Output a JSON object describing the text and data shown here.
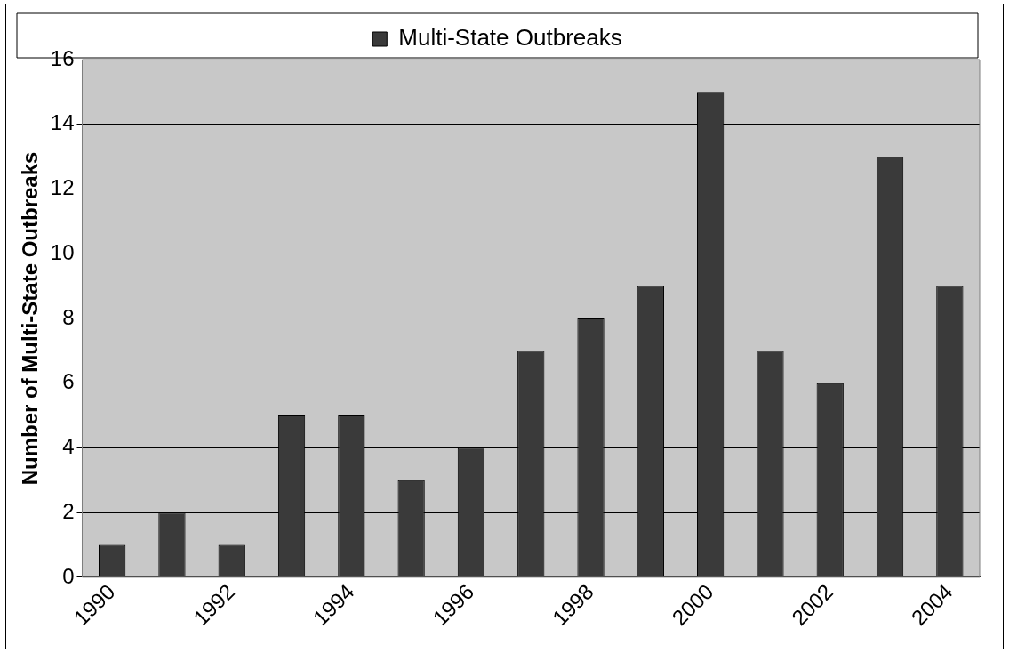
{
  "chart_data": {
    "type": "bar",
    "ylabel": "Number of Multi-State Outbreaks",
    "categories": [
      "1990",
      null,
      "1992",
      null,
      "1994",
      null,
      "1996",
      null,
      "1998",
      null,
      "2000",
      null,
      "2002",
      null,
      "2004"
    ],
    "series": [
      {
        "name": "Multi-State Outbreaks",
        "color": "#3a3a3a",
        "values": [
          1,
          2,
          1,
          5,
          5,
          3,
          4,
          7,
          8,
          9,
          15,
          7,
          6,
          13,
          9
        ]
      }
    ],
    "ylim": [
      0,
      16
    ],
    "yticks": [
      0,
      2,
      4,
      6,
      8,
      10,
      12,
      14,
      16
    ],
    "grid": "y",
    "legend": "top"
  }
}
